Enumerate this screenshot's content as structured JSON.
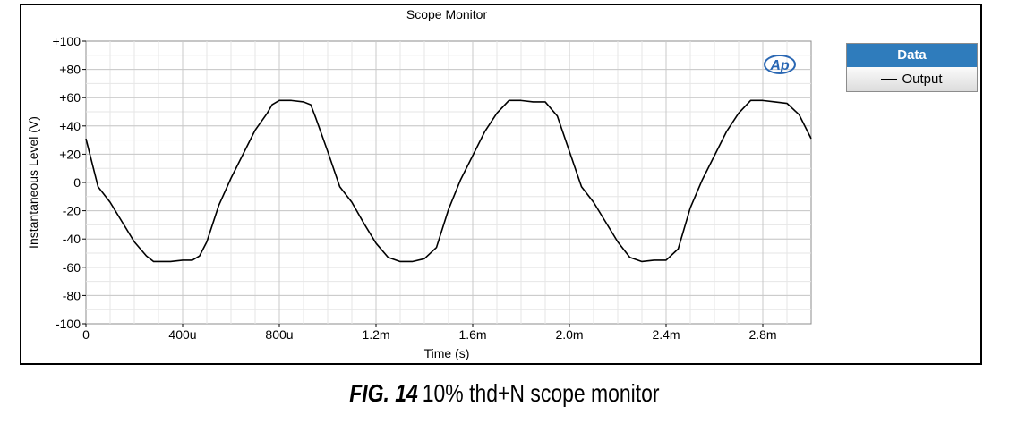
{
  "colors": {
    "trace": "#000000",
    "grid": "#d8d8d8",
    "legend_header": "#2f7cbc"
  },
  "logo": {
    "text": "Ap",
    "name": "audio-precision-logo"
  },
  "legend": {
    "title": "Data",
    "entries": [
      {
        "label": "Output",
        "color": "#000000"
      }
    ]
  },
  "caption": {
    "label": "FIG. 14",
    "text": "10% thd+N scope monitor"
  },
  "chart_data": {
    "type": "line",
    "title": "Scope Monitor",
    "xlabel": "Time (s)",
    "ylabel": "Instantaneous Level (V)",
    "xlim": [
      0,
      0.003
    ],
    "ylim": [
      -100,
      100
    ],
    "grid": true,
    "legend_position": "right, outside plot",
    "x_ticks": [
      {
        "value": 0,
        "label": "0"
      },
      {
        "value": 0.0004,
        "label": "400u"
      },
      {
        "value": 0.0008,
        "label": "800u"
      },
      {
        "value": 0.0012,
        "label": "1.2m"
      },
      {
        "value": 0.0016,
        "label": "1.6m"
      },
      {
        "value": 0.002,
        "label": "2.0m"
      },
      {
        "value": 0.0024,
        "label": "2.4m"
      },
      {
        "value": 0.0028,
        "label": "2.8m"
      }
    ],
    "y_ticks": [
      {
        "value": 100,
        "label": "+100"
      },
      {
        "value": 80,
        "label": "+80"
      },
      {
        "value": 60,
        "label": "+60"
      },
      {
        "value": 40,
        "label": "+40"
      },
      {
        "value": 20,
        "label": "+20"
      },
      {
        "value": 0,
        "label": "0"
      },
      {
        "value": -20,
        "label": "-20"
      },
      {
        "value": -40,
        "label": "-40"
      },
      {
        "value": -60,
        "label": "-60"
      },
      {
        "value": -80,
        "label": "-80"
      },
      {
        "value": -100,
        "label": "-100"
      }
    ],
    "series": [
      {
        "name": "Output",
        "x": [
          0,
          5e-05,
          0.0001,
          0.00015,
          0.0002,
          0.00025,
          0.00028,
          0.0003,
          0.00035,
          0.0004,
          0.00044,
          0.00047,
          0.0005,
          0.00055,
          0.0006,
          0.00065,
          0.0007,
          0.00075,
          0.00077,
          0.0008,
          0.00085,
          0.0009,
          0.00093,
          0.00095,
          0.001,
          0.00105,
          0.0011,
          0.00115,
          0.0012,
          0.00125,
          0.0013,
          0.00135,
          0.0014,
          0.00145,
          0.0015,
          0.00155,
          0.0016,
          0.00165,
          0.0017,
          0.00175,
          0.0018,
          0.00185,
          0.0019,
          0.00195,
          0.002,
          0.00205,
          0.0021,
          0.00215,
          0.0022,
          0.00225,
          0.0023,
          0.00235,
          0.0024,
          0.00245,
          0.0025,
          0.00255,
          0.0026,
          0.00265,
          0.0027,
          0.00275,
          0.0028,
          0.00285,
          0.0029,
          0.00295,
          0.003
        ],
        "y": [
          31,
          -3,
          -14,
          -28,
          -42,
          -52,
          -56,
          -56,
          -56,
          -55,
          -55,
          -52,
          -42,
          -16,
          3,
          20,
          37,
          49,
          55,
          58,
          58,
          57,
          55,
          46,
          22,
          -3,
          -14,
          -29,
          -43,
          -53,
          -56,
          -56,
          -54,
          -46,
          -19,
          2,
          19,
          36,
          49,
          58,
          58,
          57,
          57,
          47,
          22,
          -3,
          -14,
          -28,
          -42,
          -53,
          -56,
          -55,
          -55,
          -47,
          -18,
          2,
          19,
          36,
          49,
          58,
          58,
          57,
          56,
          48,
          31
        ]
      }
    ]
  }
}
